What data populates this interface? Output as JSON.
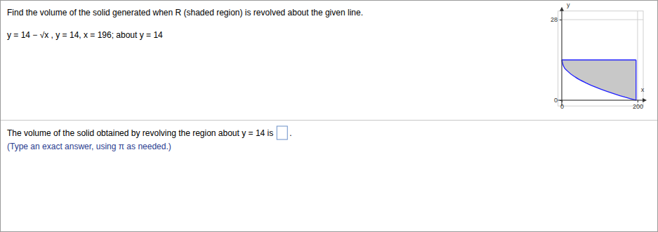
{
  "problem": {
    "instruction": "Find the volume of the solid generated when R (shaded region) is revolved about the given line.",
    "equation": "y = 14 − √x , y = 14, x = 196; about y = 14"
  },
  "answer": {
    "prompt": "The volume of the solid obtained by revolving the region about y = 14 is",
    "period": ".",
    "hint": "(Type an exact answer, using π as needed.)"
  },
  "chart_data": {
    "type": "area",
    "x_label": "x",
    "y_label": "y",
    "xlim": [
      -10,
      215
    ],
    "ylim": [
      -2,
      31
    ],
    "xticks": [
      0,
      200
    ],
    "yticks": [
      0,
      28
    ],
    "grid": true,
    "series": [
      {
        "x": [
          0,
          4,
          16,
          36,
          64,
          100,
          144,
          196
        ],
        "values": [
          14,
          12,
          10,
          8,
          6,
          4,
          2,
          0
        ],
        "color": "#1f1fff"
      },
      {
        "x": [
          0,
          196
        ],
        "values": [
          14,
          14
        ],
        "color": "#1f1fff"
      },
      {
        "x": [
          196,
          196
        ],
        "values": [
          14,
          0
        ],
        "color": "#1f1fff"
      }
    ]
  }
}
